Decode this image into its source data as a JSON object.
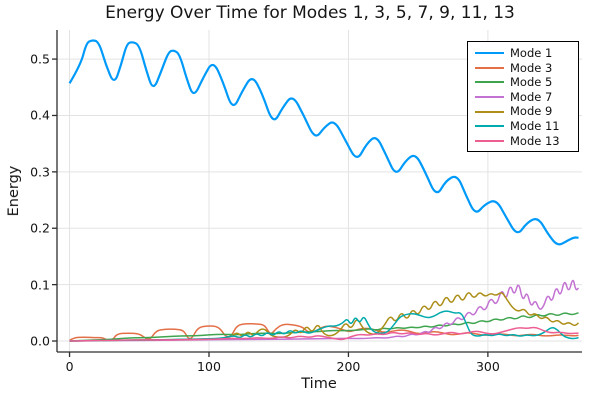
{
  "figure": {
    "title": "Energy Over Time for Modes 1, 3, 5, 7, 9, 11, 13",
    "xlabel": "Time",
    "ylabel": "Energy"
  },
  "colors": {
    "background": "#ffffff",
    "grid": "#e3e3e3",
    "spine": "#2e2e2e",
    "text": "#151515",
    "legend_border": "#000000"
  },
  "chart_data": {
    "type": "line",
    "title": "Energy Over Time for Modes 1, 3, 5, 7, 9, 11, 13",
    "xlabel": "Time",
    "ylabel": "Energy",
    "xlim": [
      -9,
      367.5
    ],
    "ylim": [
      -0.0195,
      0.5516
    ],
    "xticks": [
      0,
      100,
      200,
      300
    ],
    "xtick_labels": [
      "0",
      "100",
      "200",
      "300"
    ],
    "yticks": [
      0.0,
      0.1,
      0.2,
      0.3,
      0.4,
      0.5
    ],
    "ytick_labels": [
      "0.0",
      "0.1",
      "0.2",
      "0.3",
      "0.4",
      "0.5"
    ],
    "grid": true,
    "legend_position": "top-right",
    "series": [
      {
        "name": "Mode 1",
        "color": "#009AFA",
        "linewidth": 2.2,
        "x": [
          0,
          8,
          12,
          16,
          21,
          26,
          32,
          37,
          41,
          45,
          50,
          55,
          60,
          66,
          71,
          75,
          79,
          84,
          89,
          96,
          103,
          110,
          117,
          124,
          131,
          138,
          146,
          153,
          160,
          168,
          176,
          183,
          190,
          198,
          206,
          213,
          220,
          227,
          234,
          241,
          248,
          255,
          263,
          270,
          278,
          284,
          291,
          298,
          306,
          313,
          321,
          328,
          336,
          343,
          350,
          357,
          362,
          365
        ],
        "y": [
          0.457,
          0.49,
          0.528,
          0.534,
          0.531,
          0.49,
          0.454,
          0.49,
          0.527,
          0.531,
          0.525,
          0.48,
          0.443,
          0.48,
          0.513,
          0.516,
          0.508,
          0.465,
          0.431,
          0.468,
          0.498,
          0.46,
          0.408,
          0.444,
          0.472,
          0.44,
          0.383,
          0.415,
          0.437,
          0.4,
          0.357,
          0.38,
          0.392,
          0.355,
          0.318,
          0.35,
          0.365,
          0.33,
          0.292,
          0.32,
          0.333,
          0.3,
          0.255,
          0.285,
          0.295,
          0.26,
          0.223,
          0.243,
          0.251,
          0.22,
          0.186,
          0.21,
          0.22,
          0.19,
          0.168,
          0.178,
          0.184,
          0.183
        ]
      },
      {
        "name": "Mode 3",
        "color": "#E36F47",
        "linewidth": 1.5,
        "x": [
          0,
          3,
          10,
          18,
          24,
          27,
          31,
          34,
          42,
          50,
          55,
          58,
          62,
          68,
          76,
          82,
          85,
          88,
          92,
          99,
          107,
          112,
          116,
          120,
          127,
          134,
          140,
          144,
          148,
          153,
          160,
          167,
          172,
          177,
          183,
          190,
          196,
          201,
          207,
          213,
          219,
          225,
          231,
          237,
          243,
          249,
          255,
          261,
          267,
          273,
          279,
          285,
          291,
          297,
          303,
          309,
          315,
          321,
          327,
          333,
          339,
          345,
          351,
          357,
          362,
          365
        ],
        "y": [
          0.001,
          0.006,
          0.007,
          0.006,
          0.006,
          0.001,
          0.002,
          0.013,
          0.014,
          0.013,
          0.004,
          0.003,
          0.018,
          0.021,
          0.021,
          0.019,
          0.004,
          0.005,
          0.024,
          0.027,
          0.026,
          0.007,
          0.008,
          0.028,
          0.031,
          0.03,
          0.029,
          0.01,
          0.022,
          0.03,
          0.029,
          0.025,
          0.014,
          0.018,
          0.027,
          0.025,
          0.02,
          0.016,
          0.021,
          0.023,
          0.02,
          0.015,
          0.017,
          0.02,
          0.018,
          0.013,
          0.014,
          0.017,
          0.015,
          0.011,
          0.012,
          0.015,
          0.013,
          0.01,
          0.011,
          0.013,
          0.011,
          0.009,
          0.011,
          0.012,
          0.009,
          0.009,
          0.011,
          0.01,
          0.009,
          0.01
        ]
      },
      {
        "name": "Mode 5",
        "color": "#3EA44E",
        "linewidth": 1.5,
        "x": [
          0,
          10,
          20,
          30,
          40,
          50,
          60,
          70,
          80,
          90,
          100,
          110,
          120,
          130,
          140,
          150,
          160,
          170,
          180,
          190,
          200,
          210,
          215,
          220,
          225,
          230,
          235,
          240,
          245,
          250,
          255,
          260,
          265,
          270,
          275,
          280,
          285,
          290,
          295,
          300,
          305,
          310,
          315,
          320,
          325,
          330,
          335,
          340,
          345,
          350,
          355,
          360,
          365
        ],
        "y": [
          0,
          0.001,
          0.002,
          0.003,
          0.005,
          0.006,
          0.006,
          0.008,
          0.009,
          0.009,
          0.011,
          0.012,
          0.011,
          0.013,
          0.014,
          0.013,
          0.015,
          0.016,
          0.017,
          0.019,
          0.018,
          0.02,
          0.022,
          0.019,
          0.023,
          0.021,
          0.024,
          0.022,
          0.025,
          0.023,
          0.027,
          0.024,
          0.029,
          0.026,
          0.031,
          0.028,
          0.034,
          0.03,
          0.037,
          0.033,
          0.04,
          0.036,
          0.043,
          0.038,
          0.046,
          0.04,
          0.048,
          0.043,
          0.05,
          0.044,
          0.051,
          0.046,
          0.05
        ]
      },
      {
        "name": "Mode 7",
        "color": "#C371D2",
        "linewidth": 1.5,
        "x": [
          0,
          30,
          60,
          90,
          120,
          150,
          180,
          200,
          210,
          220,
          228,
          235,
          240,
          245,
          250,
          255,
          258,
          262,
          266,
          270,
          274,
          278,
          282,
          286,
          290,
          294,
          298,
          302,
          306,
          310,
          313,
          316,
          319,
          322,
          325,
          328,
          331,
          334,
          337,
          340,
          343,
          346,
          349,
          352,
          355,
          358,
          361,
          363,
          365
        ],
        "y": [
          0,
          0.001,
          0.001,
          0.002,
          0.003,
          0.003,
          0.004,
          0.005,
          0.004,
          0.006,
          0.005,
          0.009,
          0.007,
          0.013,
          0.01,
          0.018,
          0.014,
          0.026,
          0.02,
          0.034,
          0.027,
          0.044,
          0.035,
          0.054,
          0.043,
          0.065,
          0.051,
          0.079,
          0.061,
          0.094,
          0.071,
          0.102,
          0.079,
          0.107,
          0.069,
          0.089,
          0.059,
          0.074,
          0.054,
          0.061,
          0.084,
          0.067,
          0.099,
          0.077,
          0.111,
          0.084,
          0.114,
          0.089,
          0.094
        ]
      },
      {
        "name": "Mode 9",
        "color": "#AC8E18",
        "linewidth": 1.5,
        "x": [
          0,
          30,
          60,
          90,
          105,
          115,
          120,
          124,
          128,
          132,
          136,
          140,
          144,
          150,
          157,
          162,
          166,
          170,
          174,
          178,
          182,
          188,
          194,
          198,
          202,
          206,
          210,
          214,
          220,
          226,
          230,
          234,
          238,
          242,
          246,
          250,
          254,
          258,
          262,
          266,
          270,
          274,
          278,
          282,
          286,
          290,
          294,
          298,
          302,
          306,
          310,
          314,
          318,
          322,
          326,
          330,
          334,
          338,
          342,
          346,
          350,
          354,
          358,
          362,
          365
        ],
        "y": [
          0,
          0.001,
          0.002,
          0.003,
          0.004,
          0.006,
          0.016,
          0.007,
          0.018,
          0.008,
          0.02,
          0.022,
          0.01,
          0.006,
          0.008,
          0.022,
          0.012,
          0.028,
          0.014,
          0.032,
          0.012,
          0.008,
          0.018,
          0.034,
          0.02,
          0.042,
          0.024,
          0.014,
          0.011,
          0.028,
          0.046,
          0.032,
          0.053,
          0.036,
          0.058,
          0.044,
          0.066,
          0.052,
          0.075,
          0.058,
          0.082,
          0.064,
          0.086,
          0.068,
          0.09,
          0.074,
          0.088,
          0.078,
          0.085,
          0.08,
          0.088,
          0.072,
          0.058,
          0.052,
          0.058,
          0.044,
          0.05,
          0.038,
          0.044,
          0.032,
          0.038,
          0.028,
          0.034,
          0.026,
          0.032
        ]
      },
      {
        "name": "Mode 11",
        "color": "#00AAAD",
        "linewidth": 1.5,
        "x": [
          0,
          30,
          60,
          85,
          100,
          110,
          118,
          122,
          126,
          130,
          134,
          138,
          142,
          146,
          150,
          154,
          158,
          162,
          166,
          171,
          176,
          181,
          186,
          191,
          196,
          199,
          202,
          205,
          208,
          211,
          214,
          217,
          222,
          228,
          233,
          237,
          241,
          246,
          251,
          256,
          261,
          266,
          271,
          276,
          281,
          285,
          288,
          293,
          298,
          303,
          308,
          313,
          318,
          323,
          328,
          333,
          338,
          342,
          346,
          350,
          354,
          358,
          362,
          365
        ],
        "y": [
          0,
          0.001,
          0.002,
          0.003,
          0.004,
          0.005,
          0.01,
          0.005,
          0.012,
          0.006,
          0.014,
          0.008,
          0.016,
          0.009,
          0.018,
          0.011,
          0.02,
          0.013,
          0.019,
          0.013,
          0.017,
          0.023,
          0.027,
          0.026,
          0.032,
          0.04,
          0.028,
          0.044,
          0.031,
          0.045,
          0.03,
          0.018,
          0.013,
          0.015,
          0.03,
          0.043,
          0.047,
          0.049,
          0.046,
          0.041,
          0.043,
          0.051,
          0.054,
          0.049,
          0.051,
          0.028,
          0.011,
          0.008,
          0.012,
          0.009,
          0.013,
          0.009,
          0.012,
          0.008,
          0.011,
          0.009,
          0.012,
          0.018,
          0.025,
          0.02,
          0.009,
          0.005,
          0.004,
          0.006
        ]
      },
      {
        "name": "Mode 13",
        "color": "#ED5E93",
        "linewidth": 1.5,
        "x": [
          0,
          15,
          30,
          45,
          60,
          75,
          90,
          105,
          115,
          125,
          135,
          145,
          152,
          158,
          165,
          172,
          178,
          184,
          190,
          196,
          202,
          208,
          214,
          220,
          226,
          232,
          238,
          244,
          250,
          256,
          262,
          268,
          274,
          280,
          286,
          292,
          298,
          304,
          310,
          316,
          322,
          328,
          334,
          340,
          346,
          352,
          358,
          365
        ],
        "y": [
          0,
          0.001,
          0.001,
          0.002,
          0.002,
          0.002,
          0.003,
          0.003,
          0.005,
          0.004,
          0.006,
          0.004,
          0.008,
          0.005,
          0.009,
          0.006,
          0.01,
          0.007,
          0.004,
          0.002,
          0.008,
          0.012,
          0.01,
          0.013,
          0.011,
          0.016,
          0.012,
          0.015,
          0.011,
          0.014,
          0.01,
          0.013,
          0.016,
          0.012,
          0.015,
          0.018,
          0.014,
          0.012,
          0.016,
          0.02,
          0.024,
          0.022,
          0.025,
          0.018,
          0.014,
          0.016,
          0.013,
          0.014
        ]
      }
    ]
  }
}
